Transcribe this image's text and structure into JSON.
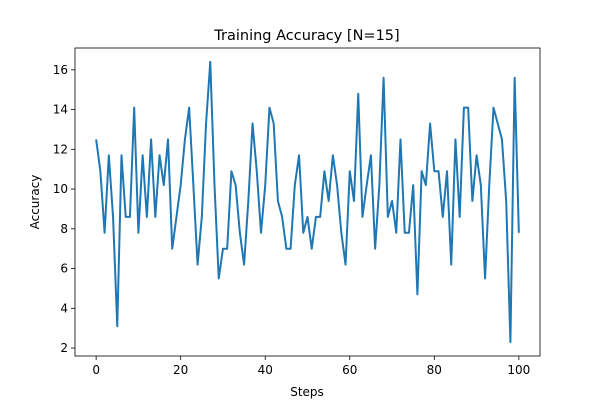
{
  "chart_data": {
    "type": "line",
    "title": "Training Accuracy [N=15]",
    "xlabel": "Steps",
    "ylabel": "Accuracy",
    "xlim": [
      -5,
      105
    ],
    "ylim": [
      1.6,
      17.1
    ],
    "xticks": [
      0,
      20,
      40,
      60,
      80,
      100
    ],
    "yticks": [
      2,
      4,
      6,
      8,
      10,
      12,
      14,
      16
    ],
    "grid": false,
    "legend": "none",
    "series": [
      {
        "color": "#1f77b4",
        "x": [
          0,
          1,
          2,
          3,
          4,
          5,
          6,
          7,
          8,
          9,
          10,
          11,
          12,
          13,
          14,
          15,
          16,
          17,
          18,
          19,
          20,
          21,
          22,
          23,
          24,
          25,
          26,
          27,
          28,
          29,
          30,
          31,
          32,
          33,
          34,
          35,
          36,
          37,
          38,
          39,
          40,
          41,
          42,
          43,
          44,
          45,
          46,
          47,
          48,
          49,
          50,
          51,
          52,
          53,
          54,
          55,
          56,
          57,
          58,
          59,
          60,
          61,
          62,
          63,
          64,
          65,
          66,
          67,
          68,
          69,
          70,
          71,
          72,
          73,
          74,
          75,
          76,
          77,
          78,
          79,
          80,
          81,
          82,
          83,
          84,
          85,
          86,
          87,
          88,
          89,
          90,
          91,
          92,
          93,
          94,
          95,
          96,
          97,
          98,
          99,
          100
        ],
        "values": [
          12.5,
          10.9,
          7.8,
          11.7,
          8.6,
          3.1,
          11.7,
          8.6,
          8.6,
          14.1,
          7.8,
          11.7,
          8.6,
          12.5,
          8.6,
          11.7,
          10.2,
          12.5,
          7.0,
          8.6,
          10.2,
          12.5,
          14.1,
          10.2,
          6.2,
          8.6,
          13.3,
          16.4,
          10.2,
          5.5,
          7.0,
          7.0,
          10.9,
          10.2,
          7.8,
          6.2,
          9.4,
          13.3,
          10.9,
          7.8,
          10.2,
          14.1,
          13.3,
          9.4,
          8.6,
          7.0,
          7.0,
          10.2,
          11.7,
          7.8,
          8.6,
          7.0,
          8.6,
          8.6,
          10.9,
          9.4,
          11.7,
          10.2,
          7.8,
          6.2,
          10.9,
          9.4,
          14.8,
          8.6,
          10.2,
          11.7,
          7.0,
          10.2,
          15.6,
          8.6,
          9.4,
          7.8,
          12.5,
          7.8,
          7.8,
          10.2,
          4.7,
          10.9,
          10.2,
          13.3,
          10.9,
          10.9,
          8.6,
          10.9,
          6.2,
          12.5,
          8.6,
          14.1,
          14.1,
          9.4,
          11.7,
          10.2,
          5.5,
          10.2,
          14.1,
          13.3,
          12.5,
          9.4,
          2.3,
          15.6,
          7.8
        ]
      }
    ]
  }
}
